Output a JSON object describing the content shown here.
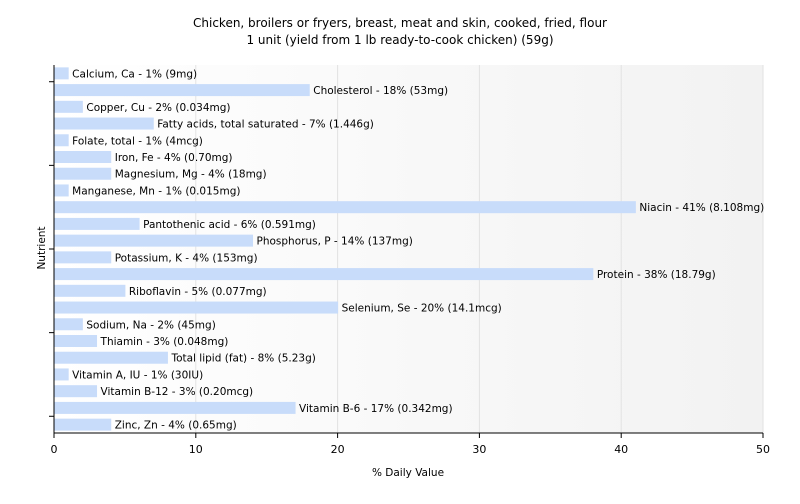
{
  "chart_data": {
    "type": "bar",
    "orientation": "horizontal",
    "title": "Chicken, broilers or fryers, breast, meat and skin, cooked, fried, flour",
    "subtitle": "1 unit (yield from 1 lb ready-to-cook chicken) (59g)",
    "xlabel": "% Daily Value",
    "ylabel": "Nutrient",
    "xlim": [
      0,
      50
    ],
    "xticks": [
      "0",
      "10",
      "20",
      "30",
      "40",
      "50"
    ],
    "grid": true,
    "bar_color": "#c8dcfa",
    "categories": [
      "Calcium, Ca",
      "Cholesterol",
      "Copper, Cu",
      "Fatty acids, total saturated",
      "Folate, total",
      "Iron, Fe",
      "Magnesium, Mg",
      "Manganese, Mn",
      "Niacin",
      "Pantothenic acid",
      "Phosphorus, P",
      "Potassium, K",
      "Protein",
      "Riboflavin",
      "Selenium, Se",
      "Sodium, Na",
      "Thiamin",
      "Total lipid (fat)",
      "Vitamin A, IU",
      "Vitamin B-12",
      "Vitamin B-6",
      "Zinc, Zn"
    ],
    "values": [
      1,
      18,
      2,
      7,
      1,
      4,
      4,
      1,
      41,
      6,
      14,
      4,
      38,
      5,
      20,
      2,
      3,
      8,
      1,
      3,
      17,
      4
    ],
    "labels": [
      "Calcium, Ca - 1% (9mg)",
      "Cholesterol - 18% (53mg)",
      "Copper, Cu - 2% (0.034mg)",
      "Fatty acids, total saturated - 7% (1.446g)",
      "Folate, total - 1% (4mcg)",
      "Iron, Fe - 4% (0.70mg)",
      "Magnesium, Mg - 4% (18mg)",
      "Manganese, Mn - 1% (0.015mg)",
      "Niacin - 41% (8.108mg)",
      "Pantothenic acid - 6% (0.591mg)",
      "Phosphorus, P - 14% (137mg)",
      "Potassium, K - 4% (153mg)",
      "Protein - 38% (18.79g)",
      "Riboflavin - 5% (0.077mg)",
      "Selenium, Se - 20% (14.1mcg)",
      "Sodium, Na - 2% (45mg)",
      "Thiamin - 3% (0.048mg)",
      "Total lipid (fat) - 8% (5.23g)",
      "Vitamin A, IU - 1% (30IU)",
      "Vitamin B-12 - 3% (0.20mcg)",
      "Vitamin B-6 - 17% (0.342mg)",
      "Zinc, Zn - 4% (0.65mg)"
    ]
  }
}
